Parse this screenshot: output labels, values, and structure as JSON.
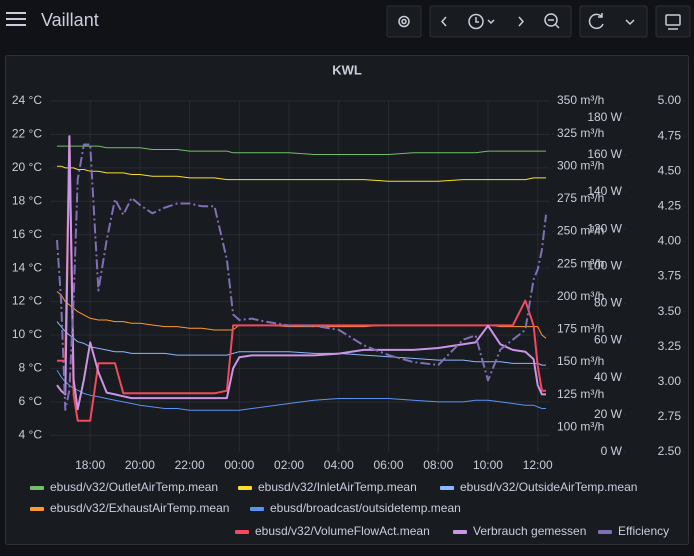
{
  "header": {
    "title": "Vaillant"
  },
  "chart_data": {
    "type": "line",
    "title": "KWL",
    "grid": true,
    "x": [
      "16:40",
      "16:50",
      "17:00",
      "17:10",
      "17:20",
      "17:30",
      "17:45",
      "18:00",
      "18:20",
      "18:40",
      "19:00",
      "19:20",
      "19:40",
      "20:00",
      "20:30",
      "21:00",
      "21:30",
      "22:00",
      "22:30",
      "23:00",
      "23:30",
      "23:45",
      "00:00",
      "00:30",
      "01:00",
      "02:00",
      "03:00",
      "04:00",
      "05:00",
      "06:00",
      "07:00",
      "08:00",
      "09:00",
      "09:30",
      "10:00",
      "10:30",
      "11:00",
      "11:30",
      "11:50",
      "12:00",
      "12:10",
      "12:20"
    ],
    "xticks": [
      "18:00",
      "20:00",
      "22:00",
      "00:00",
      "02:00",
      "04:00",
      "06:00",
      "08:00",
      "10:00",
      "12:00"
    ],
    "ylim": [
      3,
      24
    ],
    "yticks": [
      {
        "value": 4,
        "label": "4 °C"
      },
      {
        "value": 6,
        "label": "6 °C"
      },
      {
        "value": 8,
        "label": "8 °C"
      },
      {
        "value": 10,
        "label": "10 °C"
      },
      {
        "value": 12,
        "label": "12 °C"
      },
      {
        "value": 14,
        "label": "14 °C"
      },
      {
        "value": 16,
        "label": "16 °C"
      },
      {
        "value": 18,
        "label": "18 °C"
      },
      {
        "value": 20,
        "label": "20 °C"
      },
      {
        "value": 22,
        "label": "22 °C"
      },
      {
        "value": 24,
        "label": "24 °C"
      }
    ],
    "y2lim": [
      81,
      350
    ],
    "y2ticks": [
      {
        "value": 100,
        "label": "100 m³/h"
      },
      {
        "value": 125,
        "label": "125 m³/h"
      },
      {
        "value": 150,
        "label": "150 m³/h"
      },
      {
        "value": 175,
        "label": "175 m³/h"
      },
      {
        "value": 200,
        "label": "200 m³/h"
      },
      {
        "value": 225,
        "label": "225 m³/h"
      },
      {
        "value": 250,
        "label": "250 m³/h"
      },
      {
        "value": 275,
        "label": "275 m³/h"
      },
      {
        "value": 300,
        "label": "300 m³/h"
      },
      {
        "value": 325,
        "label": "325 m³/h"
      },
      {
        "value": 350,
        "label": "350 m³/h"
      }
    ],
    "y3lim": [
      0,
      189
    ],
    "y3ticks": [
      {
        "value": 0,
        "label": "0 W"
      },
      {
        "value": 20,
        "label": "20 W"
      },
      {
        "value": 40,
        "label": "40 W"
      },
      {
        "value": 60,
        "label": "60 W"
      },
      {
        "value": 80,
        "label": "80 W"
      },
      {
        "value": 100,
        "label": "100 W"
      },
      {
        "value": 120,
        "label": "120 W"
      },
      {
        "value": 140,
        "label": "140 W"
      },
      {
        "value": 160,
        "label": "160 W"
      },
      {
        "value": 180,
        "label": "180 W"
      }
    ],
    "y4lim": [
      2.5,
      5
    ],
    "y4ticks": [
      {
        "value": 2.5,
        "label": "2.50"
      },
      {
        "value": 2.75,
        "label": "2.75"
      },
      {
        "value": 3,
        "label": "3.00"
      },
      {
        "value": 3.25,
        "label": "3.25"
      },
      {
        "value": 3.5,
        "label": "3.50"
      },
      {
        "value": 3.75,
        "label": "3.75"
      },
      {
        "value": 4,
        "label": "4.00"
      },
      {
        "value": 4.25,
        "label": "4.25"
      },
      {
        "value": 4.5,
        "label": "4.50"
      },
      {
        "value": 4.75,
        "label": "4.75"
      },
      {
        "value": 5,
        "label": "5.00"
      }
    ],
    "series": [
      {
        "name": "ebusd/v32/OutletAirTemp.mean",
        "color": "#73bf69",
        "values": [
          21.3,
          21.3,
          21.3,
          21.3,
          21.3,
          21.3,
          21.3,
          21.3,
          21.3,
          21.2,
          21.2,
          21.2,
          21.2,
          21.2,
          21.1,
          21.1,
          21.1,
          21.0,
          21.0,
          21.0,
          21.0,
          20.9,
          20.9,
          20.9,
          20.9,
          20.9,
          20.8,
          20.8,
          20.8,
          20.8,
          20.9,
          20.9,
          20.9,
          20.9,
          21.0,
          21.0,
          21.0,
          21.0,
          21.0,
          21.0,
          21.0,
          21.0
        ]
      },
      {
        "name": "ebusd/v32/InletAirTemp.mean",
        "color": "#fade2a",
        "values": [
          20.1,
          20.1,
          20.0,
          20.0,
          20.0,
          19.9,
          19.9,
          19.8,
          19.8,
          19.7,
          19.7,
          19.7,
          19.6,
          19.6,
          19.5,
          19.5,
          19.5,
          19.4,
          19.4,
          19.4,
          19.3,
          19.3,
          19.3,
          19.3,
          19.3,
          19.3,
          19.3,
          19.3,
          19.3,
          19.2,
          19.2,
          19.2,
          19.3,
          19.3,
          19.3,
          19.3,
          19.3,
          19.3,
          19.4,
          19.4,
          19.4,
          19.4
        ]
      },
      {
        "name": "ebusd/v32/OutsideAirTemp.mean",
        "color": "#8ab8ff",
        "values": [
          10.8,
          10.5,
          10.2,
          10.0,
          9.8,
          9.6,
          9.5,
          9.3,
          9.2,
          9.1,
          9.0,
          9.0,
          8.9,
          8.9,
          8.9,
          8.9,
          8.8,
          8.8,
          8.8,
          8.8,
          8.8,
          8.9,
          9.0,
          9.0,
          9.0,
          9.0,
          8.9,
          8.9,
          8.8,
          8.7,
          8.6,
          8.5,
          8.5,
          8.4,
          8.4,
          8.4,
          8.3,
          8.3,
          8.3,
          8.3,
          8.2,
          8.2
        ]
      },
      {
        "name": "ebusd/v32/ExhaustAirTemp.mean",
        "color": "#ff9830",
        "values": [
          12.6,
          12.4,
          12.0,
          11.8,
          11.6,
          11.4,
          11.2,
          11.0,
          10.9,
          10.9,
          10.8,
          10.8,
          10.7,
          10.7,
          10.6,
          10.5,
          10.5,
          10.4,
          10.4,
          10.3,
          10.3,
          10.3,
          10.6,
          10.6,
          10.6,
          10.5,
          10.5,
          10.5,
          10.5,
          10.6,
          10.6,
          10.6,
          10.6,
          10.6,
          10.6,
          10.5,
          10.5,
          10.5,
          10.5,
          10.5,
          10.0,
          9.8
        ]
      },
      {
        "name": "ebusd/broadcast/outsidetemp.mean",
        "color": "#5794f2",
        "values": [
          7.9,
          7.5,
          7.2,
          7.0,
          6.8,
          6.7,
          6.5,
          6.4,
          6.3,
          6.2,
          6.1,
          6.0,
          5.9,
          5.8,
          5.7,
          5.6,
          5.6,
          5.5,
          5.5,
          5.5,
          5.5,
          5.5,
          5.5,
          5.6,
          5.7,
          5.9,
          6.1,
          6.2,
          6.2,
          6.2,
          6.1,
          6.0,
          6.0,
          6.1,
          6.1,
          6.0,
          5.9,
          5.8,
          5.8,
          5.7,
          5.6,
          5.6
        ]
      },
      {
        "name": "ebusd/v32/VolumeFlowAct.mean",
        "color": "#f2495c",
        "axis": "y2",
        "width": 2,
        "values": [
          151,
          151,
          151,
          323,
          125,
          105,
          105,
          105,
          149,
          149,
          149,
          126,
          126,
          126,
          126,
          126,
          126,
          126,
          126,
          126,
          128,
          178,
          178,
          178,
          178,
          178,
          178,
          178,
          178,
          178,
          178,
          178,
          178,
          178,
          178,
          178,
          178,
          197,
          178,
          147,
          128,
          128
        ]
      },
      {
        "name": "Verbrauch gemessen",
        "color": "#ca95e5",
        "axis": "y3",
        "width": 2,
        "values": [
          36,
          33,
          31,
          170,
          39,
          23,
          39,
          59,
          43,
          32,
          31,
          30,
          29,
          29,
          29,
          29,
          29,
          29,
          29,
          29,
          29,
          45,
          51,
          52,
          52,
          52,
          52,
          53,
          55,
          55,
          55,
          56,
          58,
          59,
          68,
          58,
          55,
          54,
          50,
          36,
          31,
          31
        ]
      },
      {
        "name": "Efficiency",
        "color": "#806eb7",
        "axis": "y4",
        "width": 2,
        "line_style": "dashed",
        "values": [
          4.01,
          3.58,
          2.8,
          2.94,
          3.58,
          4.44,
          4.69,
          4.69,
          3.65,
          4.01,
          4.3,
          4.19,
          4.31,
          4.26,
          4.2,
          4.24,
          4.27,
          4.27,
          4.25,
          4.25,
          3.87,
          3.48,
          3.44,
          3.45,
          3.43,
          3.4,
          3.4,
          3.37,
          3.26,
          3.19,
          3.14,
          3.12,
          3.3,
          3.33,
          3.01,
          3.23,
          3.3,
          3.37,
          3.73,
          3.8,
          3.94,
          4.19
        ]
      }
    ]
  }
}
